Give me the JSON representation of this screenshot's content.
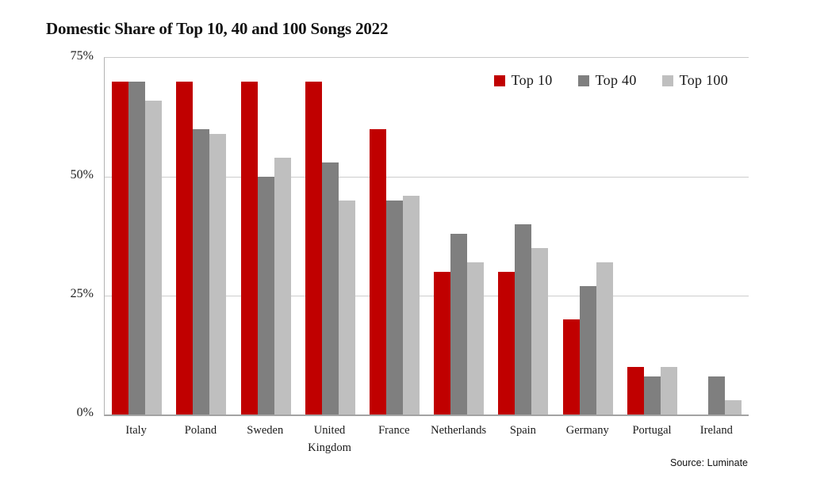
{
  "title": "Domestic Share of Top 10, 40 and 100 Songs 2022",
  "source_note": "Source: Luminate",
  "chart_data": {
    "type": "bar",
    "title": "Domestic Share of Top 10, 40 and 100 Songs 2022",
    "categories": [
      "Italy",
      "Poland",
      "Sweden",
      "United Kingdom",
      "France",
      "Netherlands",
      "Spain",
      "Germany",
      "Portugal",
      "Ireland"
    ],
    "series": [
      {
        "name": "Top 10",
        "color": "#c00000",
        "values": [
          70,
          70,
          70,
          70,
          60,
          30,
          30,
          20,
          10,
          0
        ]
      },
      {
        "name": "Top 40",
        "color": "#7f7f7f",
        "values": [
          70,
          60,
          50,
          53,
          45,
          38,
          40,
          27,
          8,
          8
        ]
      },
      {
        "name": "Top 100",
        "color": "#bfbfbf",
        "values": [
          66,
          59,
          54,
          45,
          46,
          32,
          35,
          32,
          10,
          3
        ]
      }
    ],
    "xlabel": "",
    "ylabel": "",
    "ylim": [
      0,
      75
    ],
    "yticks": [
      "75%",
      "50%",
      "25%",
      "0%"
    ],
    "ytick_values": [
      75,
      50,
      25,
      0
    ],
    "grid": true,
    "legend_position": "top-right",
    "colors": {
      "top10": "#c00000",
      "top40": "#7f7f7f",
      "top100": "#bfbfbf",
      "gridline": "#cdcdcd",
      "axis": "#a3a3a3",
      "text": "#1a1a1a"
    }
  }
}
